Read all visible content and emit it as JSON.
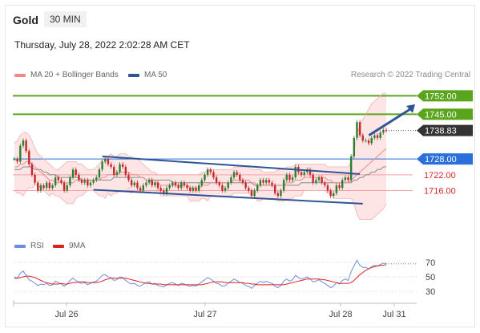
{
  "header": {
    "instrument": "Gold",
    "timeframe": "30 MIN",
    "datetime": "Thursday, July 28, 2022 2:02:28 AM CET"
  },
  "legend_main": [
    {
      "label": "MA 20 + Bollinger Bands",
      "color": "#f08a8a"
    },
    {
      "label": "MA 50",
      "color": "#2f5597"
    }
  ],
  "copyright": "Research © 2022 Trading Central",
  "legend_rsi": [
    {
      "label": "RSI",
      "color": "#6a8ee6"
    },
    {
      "label": "9MA",
      "color": "#dd2222"
    }
  ],
  "colors": {
    "resistance": "#5aa51c",
    "pivot": "#2a6fdb",
    "support": "#f4a3a3",
    "current": "#333333",
    "up_candle": "#2e7d32",
    "down_candle": "#c62828"
  },
  "chart_data": [
    {
      "type": "line",
      "title": "Gold 30 MIN price",
      "y_range": [
        1700,
        1757
      ],
      "x_ticks": [
        "Jul 26",
        "Jul 27",
        "Jul 28",
        "Jul 31"
      ],
      "levels": [
        {
          "label": "1752.00",
          "value": 1752.0,
          "kind": "resistance"
        },
        {
          "label": "1745.00",
          "value": 1745.0,
          "kind": "resistance"
        },
        {
          "label": "1738.83",
          "value": 1738.83,
          "kind": "current"
        },
        {
          "label": "1728.00",
          "value": 1728.0,
          "kind": "pivot"
        },
        {
          "label": "1722.00",
          "value": 1722.0,
          "kind": "support"
        },
        {
          "label": "1716.00",
          "value": 1716.0,
          "kind": "support"
        }
      ],
      "price_series": [
        1728,
        1727,
        1733,
        1735,
        1731,
        1726,
        1722,
        1719,
        1716,
        1718,
        1717,
        1719,
        1717,
        1718,
        1721,
        1720,
        1719,
        1716,
        1718,
        1721,
        1724,
        1722,
        1720,
        1719,
        1720,
        1718,
        1719,
        1720,
        1721,
        1724,
        1727,
        1728,
        1726,
        1725,
        1722,
        1723,
        1726,
        1725,
        1722,
        1720,
        1718,
        1719,
        1717,
        1716,
        1718,
        1719,
        1720,
        1718,
        1719,
        1717,
        1716,
        1715,
        1717,
        1718,
        1719,
        1718,
        1717,
        1719,
        1718,
        1717,
        1716,
        1717,
        1716,
        1718,
        1720,
        1722,
        1724,
        1723,
        1721,
        1719,
        1718,
        1716,
        1717,
        1719,
        1721,
        1723,
        1722,
        1720,
        1719,
        1717,
        1716,
        1714,
        1716,
        1718,
        1720,
        1719,
        1720,
        1719,
        1718,
        1715,
        1714,
        1716,
        1720,
        1722,
        1720,
        1721,
        1725,
        1723,
        1722,
        1723,
        1724,
        1722,
        1719,
        1720,
        1721,
        1719,
        1718,
        1716,
        1714,
        1715,
        1718,
        1717,
        1720,
        1721,
        1720,
        1729,
        1736,
        1742,
        1737,
        1735,
        1735,
        1734,
        1736,
        1737,
        1736,
        1738,
        1739,
        1738.83
      ],
      "ma20": [
        1725,
        1725,
        1726,
        1726,
        1727,
        1727,
        1726,
        1725,
        1724,
        1723,
        1722,
        1721,
        1720,
        1720,
        1719,
        1719,
        1719,
        1719,
        1719,
        1719,
        1719,
        1720,
        1720,
        1720,
        1720,
        1720,
        1720,
        1720,
        1720,
        1720,
        1721,
        1721,
        1722,
        1722,
        1722,
        1722,
        1723,
        1723,
        1723,
        1723,
        1722,
        1722,
        1722,
        1721,
        1721,
        1720,
        1720,
        1719,
        1719,
        1719,
        1718,
        1718,
        1718,
        1718,
        1718,
        1718,
        1718,
        1718,
        1718,
        1718,
        1717,
        1717,
        1717,
        1717,
        1718,
        1718,
        1718,
        1719,
        1719,
        1719,
        1719,
        1719,
        1719,
        1719,
        1719,
        1720,
        1720,
        1720,
        1720,
        1720,
        1720,
        1719,
        1719,
        1718,
        1718,
        1718,
        1718,
        1718,
        1718,
        1718,
        1718,
        1718,
        1718,
        1719,
        1719,
        1719,
        1720,
        1720,
        1720,
        1721,
        1721,
        1721,
        1721,
        1721,
        1721,
        1721,
        1721,
        1720,
        1720,
        1719,
        1719,
        1719,
        1719,
        1719,
        1719,
        1720,
        1721,
        1722,
        1723,
        1724,
        1725,
        1726,
        1727,
        1728,
        1729,
        1730,
        1731,
        1732
      ],
      "bb_upper": [
        1734,
        1735,
        1737,
        1738,
        1738,
        1737,
        1735,
        1732,
        1730,
        1729,
        1728,
        1727,
        1726,
        1725,
        1724,
        1724,
        1725,
        1726,
        1727,
        1727,
        1727,
        1727,
        1726,
        1726,
        1725,
        1724,
        1724,
        1724,
        1725,
        1726,
        1728,
        1729,
        1729,
        1730,
        1729,
        1729,
        1730,
        1730,
        1730,
        1729,
        1729,
        1728,
        1728,
        1727,
        1726,
        1725,
        1724,
        1723,
        1723,
        1722,
        1722,
        1722,
        1722,
        1722,
        1722,
        1722,
        1722,
        1722,
        1722,
        1722,
        1722,
        1722,
        1722,
        1722,
        1723,
        1723,
        1724,
        1724,
        1724,
        1724,
        1724,
        1724,
        1724,
        1724,
        1724,
        1725,
        1725,
        1725,
        1725,
        1725,
        1725,
        1724,
        1724,
        1724,
        1724,
        1723,
        1723,
        1723,
        1723,
        1723,
        1724,
        1724,
        1724,
        1725,
        1725,
        1725,
        1726,
        1726,
        1726,
        1726,
        1726,
        1726,
        1726,
        1726,
        1726,
        1726,
        1726,
        1725,
        1725,
        1725,
        1725,
        1725,
        1725,
        1725,
        1725,
        1727,
        1731,
        1737,
        1741,
        1743,
        1745,
        1747,
        1749,
        1750,
        1751,
        1752,
        1753,
        1753
      ],
      "bb_lower": [
        1716,
        1715,
        1715,
        1714,
        1716,
        1717,
        1717,
        1718,
        1718,
        1717,
        1716,
        1715,
        1714,
        1715,
        1714,
        1714,
        1713,
        1712,
        1711,
        1711,
        1711,
        1713,
        1714,
        1714,
        1715,
        1716,
        1716,
        1716,
        1715,
        1714,
        1714,
        1713,
        1715,
        1714,
        1715,
        1715,
        1716,
        1716,
        1716,
        1717,
        1715,
        1716,
        1716,
        1715,
        1716,
        1715,
        1716,
        1715,
        1715,
        1716,
        1714,
        1714,
        1714,
        1714,
        1714,
        1714,
        1714,
        1714,
        1714,
        1714,
        1712,
        1712,
        1712,
        1712,
        1713,
        1713,
        1712,
        1714,
        1714,
        1714,
        1714,
        1714,
        1714,
        1714,
        1714,
        1715,
        1715,
        1715,
        1715,
        1715,
        1715,
        1714,
        1714,
        1712,
        1712,
        1713,
        1713,
        1713,
        1713,
        1713,
        1712,
        1712,
        1712,
        1713,
        1713,
        1713,
        1714,
        1714,
        1714,
        1716,
        1716,
        1716,
        1716,
        1716,
        1716,
        1716,
        1716,
        1715,
        1715,
        1713,
        1713,
        1713,
        1713,
        1713,
        1713,
        1713,
        1711,
        1707,
        1705,
        1705,
        1705,
        1705,
        1705,
        1706,
        1707,
        1708,
        1709,
        1711
      ],
      "ma50": [
        1724,
        1724,
        1724,
        1725,
        1725,
        1725,
        1725,
        1724,
        1724,
        1724,
        1723,
        1723,
        1722,
        1722,
        1722,
        1721,
        1721,
        1721,
        1721,
        1721,
        1721,
        1721,
        1721,
        1720,
        1720,
        1720,
        1720,
        1720,
        1720,
        1720,
        1720,
        1720,
        1720,
        1720,
        1721,
        1721,
        1721,
        1721,
        1721,
        1721,
        1721,
        1721,
        1721,
        1721,
        1721,
        1720,
        1720,
        1720,
        1720,
        1720,
        1720,
        1720,
        1720,
        1720,
        1719,
        1719,
        1719,
        1719,
        1719,
        1719,
        1719,
        1719,
        1719,
        1719,
        1719,
        1719,
        1719,
        1719,
        1719,
        1719,
        1719,
        1719,
        1719,
        1719,
        1719,
        1719,
        1719,
        1719,
        1719,
        1719,
        1719,
        1719,
        1718,
        1718,
        1718,
        1718,
        1718,
        1718,
        1718,
        1718,
        1718,
        1718,
        1718,
        1718,
        1718,
        1718,
        1718,
        1718,
        1719,
        1719,
        1719,
        1719,
        1719,
        1719,
        1719,
        1719,
        1719,
        1719,
        1719,
        1719,
        1719,
        1719,
        1719,
        1719,
        1719,
        1719,
        1720,
        1720,
        1721,
        1721,
        1722,
        1722,
        1723,
        1723,
        1724,
        1724,
        1725,
        1725
      ],
      "trend_lines": [
        {
          "name": "upper channel",
          "from": [
            30,
            1729
          ],
          "to": [
            118,
            1722.3
          ]
        },
        {
          "name": "lower channel",
          "from": [
            27,
            1716.3
          ],
          "to": [
            119,
            1711
          ]
        }
      ],
      "arrow": {
        "from": [
          120,
          1737
        ],
        "to": [
          124,
          1750
        ]
      }
    },
    {
      "type": "line",
      "title": "RSI",
      "y_ticks": [
        70,
        50,
        30
      ],
      "y_range": [
        20,
        80
      ],
      "rsi": [
        50,
        48,
        55,
        58,
        52,
        46,
        44,
        41,
        38,
        40,
        39,
        41,
        38,
        39,
        44,
        42,
        40,
        37,
        40,
        45,
        48,
        45,
        42,
        41,
        42,
        39,
        41,
        43,
        44,
        48,
        52,
        53,
        50,
        49,
        45,
        46,
        50,
        49,
        45,
        42,
        40,
        41,
        38,
        37,
        40,
        42,
        43,
        40,
        41,
        38,
        37,
        36,
        39,
        41,
        42,
        40,
        38,
        41,
        40,
        38,
        37,
        38,
        37,
        40,
        43,
        46,
        49,
        47,
        44,
        41,
        40,
        37,
        38,
        41,
        44,
        47,
        45,
        42,
        41,
        38,
        37,
        34,
        38,
        41,
        44,
        42,
        44,
        42,
        41,
        37,
        35,
        38,
        44,
        47,
        44,
        46,
        52,
        49,
        47,
        48,
        50,
        47,
        43,
        44,
        46,
        43,
        41,
        38,
        35,
        37,
        42,
        40,
        45,
        47,
        45,
        57,
        65,
        73,
        66,
        63,
        63,
        61,
        64,
        66,
        65,
        67,
        69,
        68
      ],
      "ma9": [
        48,
        48,
        49,
        50,
        51,
        51,
        50,
        49,
        47,
        45,
        43,
        42,
        41,
        40,
        40,
        40,
        41,
        40,
        40,
        41,
        42,
        42,
        43,
        43,
        43,
        42,
        42,
        42,
        42,
        43,
        44,
        46,
        47,
        48,
        48,
        48,
        48,
        48,
        48,
        47,
        46,
        45,
        44,
        43,
        42,
        41,
        41,
        40,
        40,
        40,
        40,
        39,
        39,
        39,
        39,
        39,
        39,
        39,
        39,
        39,
        39,
        39,
        39,
        39,
        39,
        40,
        41,
        42,
        43,
        43,
        43,
        43,
        42,
        42,
        42,
        42,
        42,
        42,
        42,
        41,
        41,
        40,
        40,
        39,
        39,
        39,
        39,
        39,
        39,
        39,
        39,
        39,
        39,
        40,
        41,
        42,
        43,
        44,
        45,
        46,
        47,
        47,
        47,
        47,
        47,
        46,
        46,
        45,
        44,
        43,
        42,
        41,
        41,
        41,
        41,
        42,
        45,
        49,
        53,
        56,
        59,
        61,
        63,
        64,
        65,
        66,
        66,
        67
      ]
    }
  ]
}
